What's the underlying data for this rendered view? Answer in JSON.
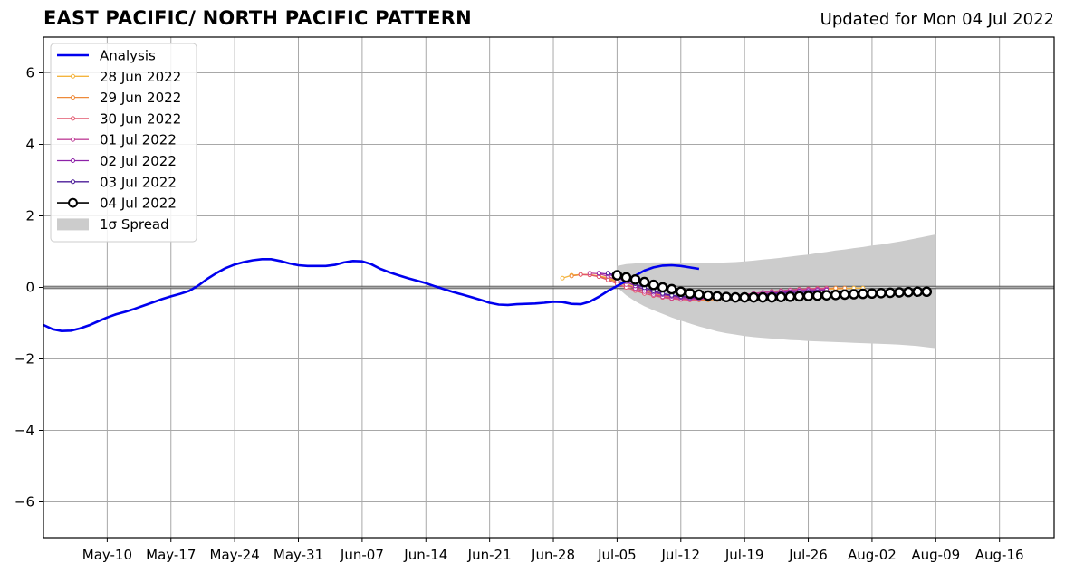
{
  "header": {
    "title": "EAST PACIFIC/ NORTH PACIFIC PATTERN",
    "updated": "Updated for Mon 04 Jul 2022"
  },
  "chart_data": {
    "type": "line",
    "title": "EAST PACIFIC/ NORTH PACIFIC PATTERN",
    "xlim": [
      "2022-05-03",
      "2022-08-22"
    ],
    "ylim": [
      -7,
      7
    ],
    "x_ticks": [
      {
        "date": "2022-05-10",
        "label": "May-10"
      },
      {
        "date": "2022-05-17",
        "label": "May-17"
      },
      {
        "date": "2022-05-24",
        "label": "May-24"
      },
      {
        "date": "2022-05-31",
        "label": "May-31"
      },
      {
        "date": "2022-06-07",
        "label": "Jun-07"
      },
      {
        "date": "2022-06-14",
        "label": "Jun-14"
      },
      {
        "date": "2022-06-21",
        "label": "Jun-21"
      },
      {
        "date": "2022-06-28",
        "label": "Jun-28"
      },
      {
        "date": "2022-07-05",
        "label": "Jul-05"
      },
      {
        "date": "2022-07-12",
        "label": "Jul-12"
      },
      {
        "date": "2022-07-19",
        "label": "Jul-19"
      },
      {
        "date": "2022-07-26",
        "label": "Jul-26"
      },
      {
        "date": "2022-08-02",
        "label": "Aug-02"
      },
      {
        "date": "2022-08-09",
        "label": "Aug-09"
      },
      {
        "date": "2022-08-16",
        "label": "Aug-16"
      }
    ],
    "y_ticks": [
      {
        "value": 6,
        "label": "6"
      },
      {
        "value": 4,
        "label": "4"
      },
      {
        "value": 2,
        "label": "2"
      },
      {
        "value": 0,
        "label": "0"
      },
      {
        "value": -2,
        "label": "−2"
      },
      {
        "value": -4,
        "label": "−4"
      },
      {
        "value": -6,
        "label": "−6"
      }
    ],
    "grid": true,
    "legend_position": "top-left",
    "analysis": {
      "name": "Analysis",
      "color": "#0000ee",
      "points": [
        [
          "2022-05-03",
          -1.05
        ],
        [
          "2022-05-04",
          -1.17
        ],
        [
          "2022-05-05",
          -1.22
        ],
        [
          "2022-05-06",
          -1.21
        ],
        [
          "2022-05-07",
          -1.15
        ],
        [
          "2022-05-08",
          -1.06
        ],
        [
          "2022-05-09",
          -0.95
        ],
        [
          "2022-05-10",
          -0.84
        ],
        [
          "2022-05-11",
          -0.75
        ],
        [
          "2022-05-12",
          -0.68
        ],
        [
          "2022-05-13",
          -0.6
        ],
        [
          "2022-05-14",
          -0.51
        ],
        [
          "2022-05-15",
          -0.42
        ],
        [
          "2022-05-16",
          -0.33
        ],
        [
          "2022-05-17",
          -0.25
        ],
        [
          "2022-05-18",
          -0.18
        ],
        [
          "2022-05-19",
          -0.1
        ],
        [
          "2022-05-20",
          0.05
        ],
        [
          "2022-05-21",
          0.24
        ],
        [
          "2022-05-22",
          0.4
        ],
        [
          "2022-05-23",
          0.54
        ],
        [
          "2022-05-24",
          0.64
        ],
        [
          "2022-05-25",
          0.71
        ],
        [
          "2022-05-26",
          0.76
        ],
        [
          "2022-05-27",
          0.79
        ],
        [
          "2022-05-28",
          0.79
        ],
        [
          "2022-05-29",
          0.74
        ],
        [
          "2022-05-30",
          0.67
        ],
        [
          "2022-05-31",
          0.62
        ],
        [
          "2022-06-01",
          0.6
        ],
        [
          "2022-06-02",
          0.6
        ],
        [
          "2022-06-03",
          0.6
        ],
        [
          "2022-06-04",
          0.63
        ],
        [
          "2022-06-05",
          0.7
        ],
        [
          "2022-06-06",
          0.74
        ],
        [
          "2022-06-07",
          0.73
        ],
        [
          "2022-06-08",
          0.65
        ],
        [
          "2022-06-09",
          0.52
        ],
        [
          "2022-06-10",
          0.42
        ],
        [
          "2022-06-11",
          0.34
        ],
        [
          "2022-06-12",
          0.26
        ],
        [
          "2022-06-13",
          0.19
        ],
        [
          "2022-06-14",
          0.12
        ],
        [
          "2022-06-15",
          0.03
        ],
        [
          "2022-06-16",
          -0.05
        ],
        [
          "2022-06-17",
          -0.13
        ],
        [
          "2022-06-18",
          -0.2
        ],
        [
          "2022-06-19",
          -0.27
        ],
        [
          "2022-06-20",
          -0.35
        ],
        [
          "2022-06-21",
          -0.43
        ],
        [
          "2022-06-22",
          -0.48
        ],
        [
          "2022-06-23",
          -0.49
        ],
        [
          "2022-06-24",
          -0.47
        ],
        [
          "2022-06-25",
          -0.46
        ],
        [
          "2022-06-26",
          -0.45
        ],
        [
          "2022-06-27",
          -0.43
        ],
        [
          "2022-06-28",
          -0.4
        ],
        [
          "2022-06-29",
          -0.41
        ],
        [
          "2022-06-30",
          -0.46
        ],
        [
          "2022-07-01",
          -0.47
        ],
        [
          "2022-07-02",
          -0.4
        ],
        [
          "2022-07-03",
          -0.26
        ],
        [
          "2022-07-04",
          -0.1
        ],
        [
          "2022-07-05",
          0.04
        ],
        [
          "2022-07-06",
          0.18
        ],
        [
          "2022-07-07",
          0.33
        ],
        [
          "2022-07-08",
          0.47
        ],
        [
          "2022-07-09",
          0.56
        ],
        [
          "2022-07-10",
          0.61
        ],
        [
          "2022-07-11",
          0.62
        ],
        [
          "2022-07-12",
          0.6
        ],
        [
          "2022-07-13",
          0.56
        ],
        [
          "2022-07-14",
          0.52
        ]
      ]
    },
    "forecasts": [
      {
        "name": "28 Jun 2022",
        "color": "#f4b43e",
        "start": "2022-06-29",
        "values": [
          0.26,
          0.34,
          0.36,
          0.36,
          0.32,
          0.27,
          0.18,
          0.1,
          0.02,
          -0.05,
          -0.12,
          -0.18,
          -0.23,
          -0.27,
          -0.3,
          -0.32,
          -0.33,
          -0.33,
          -0.32,
          -0.3,
          -0.28,
          -0.25,
          -0.22,
          -0.19,
          -0.16,
          -0.13,
          -0.1,
          -0.08,
          -0.06,
          -0.05,
          -0.04,
          -0.03,
          -0.02,
          -0.02
        ]
      },
      {
        "name": "29 Jun 2022",
        "color": "#ee8a3a",
        "start": "2022-06-30",
        "values": [
          0.32,
          0.36,
          0.35,
          0.31,
          0.24,
          0.15,
          0.06,
          -0.03,
          -0.1,
          -0.17,
          -0.23,
          -0.28,
          -0.32,
          -0.34,
          -0.35,
          -0.35,
          -0.34,
          -0.32,
          -0.29,
          -0.26,
          -0.22,
          -0.19,
          -0.15,
          -0.12,
          -0.09,
          -0.07,
          -0.05,
          -0.04,
          -0.03,
          -0.02,
          -0.02
        ]
      },
      {
        "name": "30 Jun 2022",
        "color": "#e2566d",
        "start": "2022-07-01",
        "values": [
          0.36,
          0.35,
          0.3,
          0.21,
          0.1,
          0.0,
          -0.09,
          -0.17,
          -0.23,
          -0.28,
          -0.32,
          -0.34,
          -0.35,
          -0.34,
          -0.32,
          -0.3,
          -0.27,
          -0.24,
          -0.2,
          -0.17,
          -0.14,
          -0.11,
          -0.09,
          -0.07,
          -0.05,
          -0.04,
          -0.03,
          -0.02
        ]
      },
      {
        "name": "01 Jul 2022",
        "color": "#c0439a",
        "start": "2022-07-02",
        "values": [
          0.4,
          0.38,
          0.31,
          0.2,
          0.08,
          -0.03,
          -0.12,
          -0.2,
          -0.26,
          -0.3,
          -0.32,
          -0.33,
          -0.33,
          -0.31,
          -0.29,
          -0.26,
          -0.23,
          -0.2,
          -0.17,
          -0.14,
          -0.12,
          -0.1,
          -0.08,
          -0.07,
          -0.06,
          -0.05,
          -0.04
        ]
      },
      {
        "name": "02 Jul 2022",
        "color": "#8d22a8",
        "start": "2022-07-03",
        "values": [
          0.4,
          0.37,
          0.28,
          0.16,
          0.04,
          -0.06,
          -0.14,
          -0.2,
          -0.25,
          -0.28,
          -0.3,
          -0.3,
          -0.29,
          -0.28,
          -0.26,
          -0.24,
          -0.22,
          -0.2,
          -0.18,
          -0.16,
          -0.14,
          -0.12,
          -0.1,
          -0.09,
          -0.08,
          -0.07
        ]
      },
      {
        "name": "03 Jul 2022",
        "color": "#4b1c98",
        "start": "2022-07-04",
        "values": [
          0.4,
          0.33,
          0.22,
          0.1,
          -0.01,
          -0.1,
          -0.17,
          -0.22,
          -0.25,
          -0.27,
          -0.28,
          -0.28,
          -0.27,
          -0.26,
          -0.25,
          -0.23,
          -0.22,
          -0.2,
          -0.18,
          -0.17,
          -0.15,
          -0.14,
          -0.13,
          -0.12
        ]
      }
    ],
    "latest": {
      "name": "04 Jul 2022",
      "color": "#000000",
      "start": "2022-07-05",
      "values": [
        0.34,
        0.28,
        0.22,
        0.15,
        0.07,
        0.0,
        -0.05,
        -0.12,
        -0.17,
        -0.2,
        -0.23,
        -0.25,
        -0.27,
        -0.28,
        -0.28,
        -0.28,
        -0.28,
        -0.28,
        -0.27,
        -0.26,
        -0.25,
        -0.24,
        -0.23,
        -0.22,
        -0.21,
        -0.2,
        -0.19,
        -0.18,
        -0.17,
        -0.16,
        -0.15,
        -0.14,
        -0.13,
        -0.12,
        -0.12
      ]
    },
    "spread": {
      "name": "1σ Spread",
      "color": "#cccccc",
      "start": "2022-07-05",
      "upper": [
        0.6,
        0.65,
        0.67,
        0.69,
        0.7,
        0.7,
        0.7,
        0.7,
        0.69,
        0.69,
        0.69,
        0.69,
        0.7,
        0.71,
        0.73,
        0.75,
        0.78,
        0.8,
        0.83,
        0.86,
        0.89,
        0.92,
        0.96,
        0.99,
        1.03,
        1.06,
        1.1,
        1.13,
        1.17,
        1.2,
        1.24,
        1.28,
        1.33,
        1.38,
        1.43,
        1.48
      ],
      "lower": [
        0.0,
        -0.22,
        -0.39,
        -0.53,
        -0.64,
        -0.74,
        -0.84,
        -0.93,
        -1.01,
        -1.09,
        -1.16,
        -1.23,
        -1.28,
        -1.32,
        -1.36,
        -1.39,
        -1.41,
        -1.43,
        -1.45,
        -1.47,
        -1.48,
        -1.5,
        -1.51,
        -1.52,
        -1.53,
        -1.54,
        -1.55,
        -1.56,
        -1.57,
        -1.58,
        -1.59,
        -1.6,
        -1.62,
        -1.64,
        -1.67,
        -1.7
      ]
    }
  }
}
